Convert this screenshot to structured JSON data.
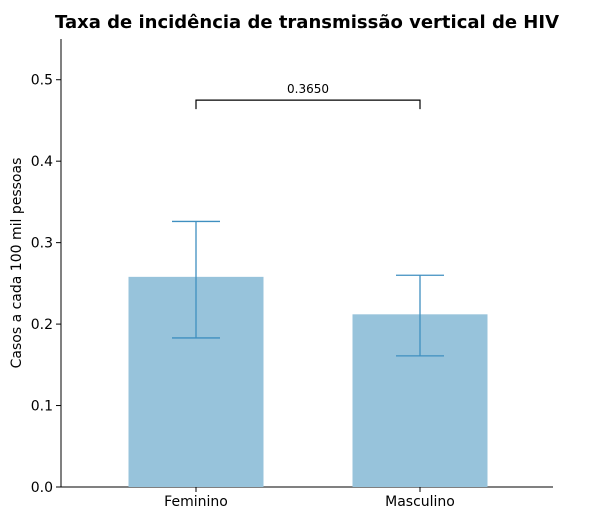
{
  "chart_data": {
    "type": "bar",
    "title": "Taxa de incidência de transmissão vertical de HIV",
    "xlabel": "",
    "ylabel": "Casos a cada 100 mil pessoas",
    "categories": [
      "Feminino",
      "Masculino"
    ],
    "values": [
      0.258,
      0.212
    ],
    "error_low": [
      0.183,
      0.161
    ],
    "error_high": [
      0.326,
      0.26
    ],
    "ylim": [
      0,
      0.55
    ],
    "yticks": [
      "0.0",
      "0.1",
      "0.2",
      "0.3",
      "0.4",
      "0.5"
    ],
    "grid": false,
    "significance": {
      "pair": [
        "Feminino",
        "Masculino"
      ],
      "label": "0.3650",
      "y": 0.475
    },
    "colors": {
      "bar": "#97c3db",
      "error": "#3f8fc0",
      "axis": "#000000",
      "bracket": "#000000"
    }
  }
}
